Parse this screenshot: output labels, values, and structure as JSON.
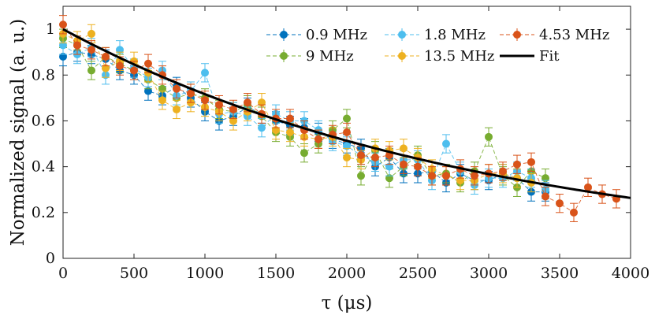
{
  "chart_data": {
    "type": "scatter",
    "title": "",
    "xlabel": "τ (μs)",
    "ylabel": "Normalized signal (a. u.)",
    "xlim": [
      0,
      4000
    ],
    "ylim": [
      0,
      1.1
    ],
    "x_ticks": [
      0,
      500,
      1000,
      1500,
      2000,
      2500,
      3000,
      3500,
      4000
    ],
    "y_ticks": [
      0,
      0.2,
      0.4,
      0.6,
      0.8,
      1
    ],
    "grid": false,
    "legend_position": "top-right",
    "error_bar": 0.04,
    "series": [
      {
        "name": "0.9 MHz",
        "color": "#0072BD",
        "x": [
          0,
          100,
          200,
          300,
          400,
          500,
          600,
          700,
          800,
          900,
          1000,
          1100,
          1200,
          1300,
          1400,
          1500,
          1600,
          1700,
          1800,
          1900,
          2000,
          2100,
          2200,
          2300,
          2400,
          2500,
          2600,
          2700,
          2800,
          2900,
          3000,
          3100,
          3200,
          3300,
          3400
        ],
        "y": [
          0.88,
          0.9,
          0.89,
          0.87,
          0.82,
          0.8,
          0.73,
          0.71,
          0.75,
          0.7,
          0.64,
          0.6,
          0.62,
          0.66,
          0.63,
          0.6,
          0.58,
          0.57,
          0.55,
          0.52,
          0.5,
          0.48,
          0.4,
          0.44,
          0.37,
          0.37,
          0.38,
          0.33,
          0.37,
          0.34,
          0.34,
          0.37,
          0.35,
          0.29,
          0.29
        ]
      },
      {
        "name": "9 MHz",
        "color": "#77AC30",
        "x": [
          0,
          100,
          200,
          300,
          400,
          500,
          600,
          700,
          800,
          900,
          1000,
          1100,
          1200,
          1300,
          1400,
          1500,
          1600,
          1700,
          1800,
          1900,
          2000,
          2100,
          2200,
          2300,
          2400,
          2500,
          2600,
          2700,
          2800,
          2900,
          3000,
          3100,
          3200,
          3300,
          3400
        ],
        "y": [
          0.96,
          0.93,
          0.82,
          0.88,
          0.85,
          0.82,
          0.78,
          0.74,
          0.7,
          0.72,
          0.7,
          0.65,
          0.64,
          0.67,
          0.62,
          0.55,
          0.53,
          0.46,
          0.5,
          0.56,
          0.61,
          0.36,
          0.47,
          0.35,
          0.4,
          0.45,
          0.36,
          0.37,
          0.33,
          0.38,
          0.53,
          0.36,
          0.31,
          0.38,
          0.35
        ]
      },
      {
        "name": "1.8 MHz",
        "color": "#4DBEEE",
        "x": [
          0,
          100,
          200,
          300,
          400,
          500,
          600,
          700,
          800,
          900,
          1000,
          1100,
          1200,
          1300,
          1400,
          1500,
          1600,
          1700,
          1800,
          1900,
          2000,
          2100,
          2200,
          2300,
          2400,
          2500,
          2600,
          2700,
          2800,
          2900,
          3000,
          3100,
          3200,
          3300,
          3400
        ],
        "y": [
          0.93,
          0.89,
          0.92,
          0.8,
          0.91,
          0.83,
          0.79,
          0.82,
          0.71,
          0.73,
          0.81,
          0.63,
          0.64,
          0.62,
          0.57,
          0.63,
          0.6,
          0.6,
          0.56,
          0.51,
          0.49,
          0.45,
          0.42,
          0.4,
          0.43,
          0.43,
          0.34,
          0.5,
          0.38,
          0.32,
          0.35,
          0.35,
          0.38,
          0.35,
          0.3
        ]
      },
      {
        "name": "13.5 MHz",
        "color": "#EDB120",
        "x": [
          0,
          100,
          200,
          300,
          400,
          500,
          600,
          700,
          800,
          900,
          1000,
          1100,
          1200,
          1300,
          1400,
          1500,
          1600,
          1700,
          1800,
          1900,
          2000,
          2100,
          2200,
          2300,
          2400,
          2500,
          2600,
          2700,
          2800,
          2900,
          3000,
          3100,
          3200,
          3300
        ],
        "y": [
          0.98,
          0.95,
          0.98,
          0.83,
          0.86,
          0.86,
          0.81,
          0.69,
          0.65,
          0.68,
          0.66,
          0.64,
          0.6,
          0.64,
          0.68,
          0.56,
          0.55,
          0.53,
          0.52,
          0.53,
          0.44,
          0.43,
          0.48,
          0.47,
          0.48,
          0.44,
          0.39,
          0.36,
          0.34,
          0.34,
          0.37,
          0.37,
          0.35,
          0.33
        ]
      },
      {
        "name": "4.53 MHz",
        "color": "#D95319",
        "x": [
          0,
          100,
          200,
          300,
          400,
          500,
          600,
          700,
          800,
          900,
          1000,
          1100,
          1200,
          1300,
          1400,
          1500,
          1600,
          1700,
          1800,
          1900,
          2000,
          2100,
          2200,
          2300,
          2400,
          2500,
          2600,
          2700,
          2800,
          2900,
          3000,
          3100,
          3200,
          3300,
          3400,
          3500,
          3600,
          3700,
          3800,
          3900
        ],
        "y": [
          1.02,
          0.93,
          0.91,
          0.88,
          0.84,
          0.82,
          0.85,
          0.8,
          0.74,
          0.72,
          0.69,
          0.67,
          0.65,
          0.68,
          0.63,
          0.61,
          0.61,
          0.56,
          0.52,
          0.54,
          0.55,
          0.45,
          0.44,
          0.45,
          0.41,
          0.4,
          0.36,
          0.36,
          0.39,
          0.36,
          0.37,
          0.38,
          0.41,
          0.42,
          0.27,
          0.24,
          0.2,
          0.31,
          0.28,
          0.26
        ]
      }
    ],
    "fit": {
      "name": "Fit",
      "color": "#000000",
      "model": "y = exp(-x / tau)",
      "tau_us": 3000,
      "x_range": [
        0,
        4000
      ]
    },
    "legend": {
      "rows": [
        [
          "0.9 MHz",
          "1.8 MHz",
          "4.53 MHz"
        ],
        [
          "9 MHz",
          "13.5 MHz",
          "Fit"
        ]
      ]
    }
  }
}
